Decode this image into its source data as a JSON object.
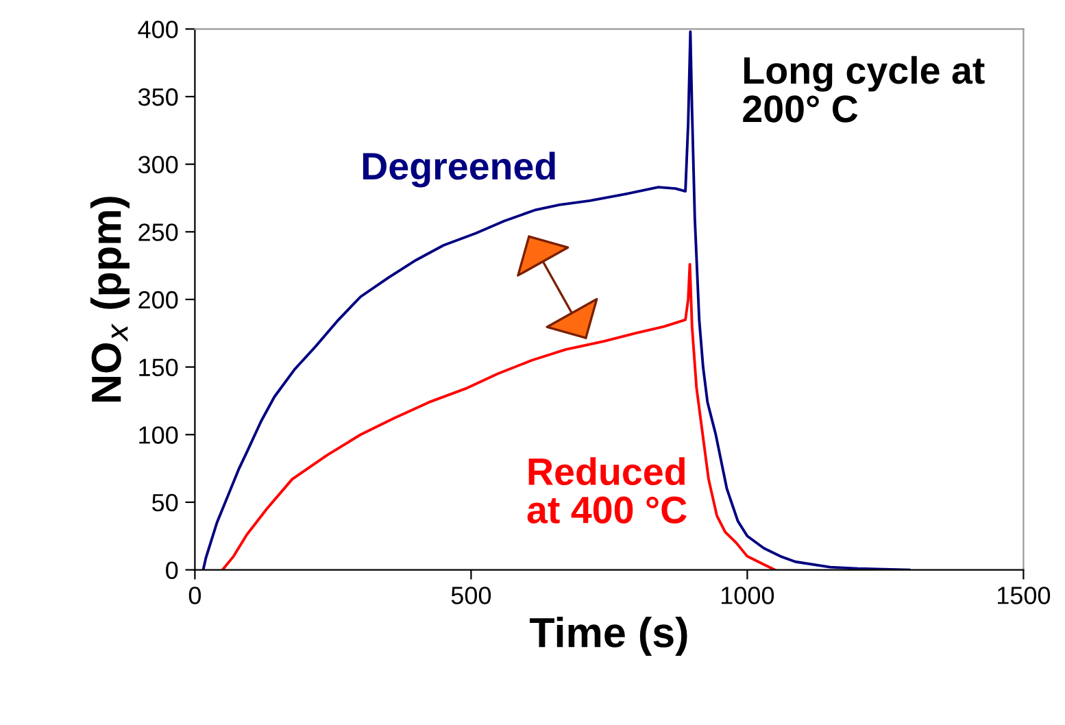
{
  "chart_data": {
    "type": "line",
    "xlabel": "Time (s)",
    "ylabel": "NO$_{x}$ (ppm)",
    "xlim": [
      0,
      1500
    ],
    "xticks": [
      0,
      500,
      1000,
      1500
    ],
    "ylim": [
      0,
      400
    ],
    "yticks": [
      0,
      50,
      100,
      150,
      200,
      250,
      300,
      350,
      400
    ],
    "grid": false,
    "legend": false,
    "marker": "none",
    "line_style": "solid",
    "annotations": [
      "Long cycle at 200° C"
    ],
    "series": [
      {
        "name": "Degreened",
        "color": "#000080",
        "x": [
          15,
          20,
          40,
          62,
          80,
          94,
          120,
          144,
          180,
          218,
          260,
          300,
          350,
          400,
          450,
          509,
          560,
          615,
          660,
          715,
          780,
          839,
          870,
          888,
          893,
          897,
          900,
          905,
          913,
          920,
          928,
          943,
          963,
          983,
          1000,
          1030,
          1060,
          1087,
          1150,
          1200,
          1293
        ],
        "values": [
          0,
          9,
          35,
          57,
          75,
          87,
          110,
          128,
          148,
          165,
          185,
          202,
          216,
          229,
          240,
          249,
          258,
          266,
          270,
          273,
          278,
          283,
          282,
          280,
          330,
          398,
          340,
          260,
          185,
          150,
          124,
          100,
          60,
          36,
          25,
          16,
          10,
          6,
          2,
          1,
          0
        ]
      },
      {
        "name": "Reduced\nat 400 °C",
        "color": "#ff0000",
        "x": [
          50,
          70,
          94,
          130,
          176,
          240,
          300,
          360,
          424,
          490,
          548,
          610,
          672,
          740,
          797,
          850,
          888,
          893,
          896,
          900,
          908,
          918,
          930,
          945,
          960,
          980,
          1000,
          1030,
          1050
        ],
        "values": [
          0,
          10,
          26,
          45,
          67,
          85,
          100,
          112,
          124,
          134,
          145,
          155,
          163,
          169,
          175,
          180,
          185,
          200,
          226,
          180,
          135,
          104,
          67,
          40,
          28,
          20,
          10,
          4,
          0
        ]
      }
    ]
  }
}
